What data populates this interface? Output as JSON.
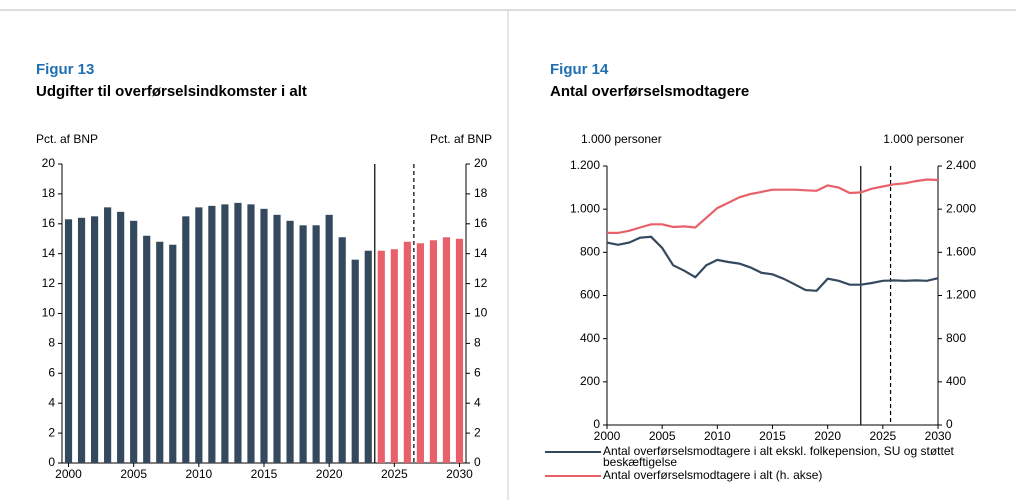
{
  "chart_data": [
    {
      "type": "bar",
      "label": "Figur 13",
      "title": "Udgifter til overførselsindkomster i alt",
      "ylabel": "Pct. af BNP",
      "y2label": "Pct. af BNP",
      "x": [
        2000,
        2001,
        2002,
        2003,
        2004,
        2005,
        2006,
        2007,
        2008,
        2009,
        2010,
        2011,
        2012,
        2013,
        2014,
        2015,
        2016,
        2017,
        2018,
        2019,
        2020,
        2021,
        2022,
        2023,
        2024,
        2025,
        2026,
        2027,
        2028,
        2029,
        2030
      ],
      "values": [
        16.3,
        16.4,
        16.5,
        17.1,
        16.8,
        16.2,
        15.2,
        14.8,
        14.6,
        16.5,
        17.1,
        17.2,
        17.3,
        17.4,
        17.3,
        17.0,
        16.6,
        16.2,
        15.9,
        15.9,
        16.6,
        15.1,
        13.6,
        14.2,
        14.2,
        14.3,
        14.8,
        14.7,
        14.9,
        15.1,
        15.0
      ],
      "colors": [
        "#34495e",
        "#34495e",
        "#34495e",
        "#34495e",
        "#34495e",
        "#34495e",
        "#34495e",
        "#34495e",
        "#34495e",
        "#34495e",
        "#34495e",
        "#34495e",
        "#34495e",
        "#34495e",
        "#34495e",
        "#34495e",
        "#34495e",
        "#34495e",
        "#34495e",
        "#34495e",
        "#34495e",
        "#34495e",
        "#34495e",
        "#34495e",
        "#e8616a",
        "#e8616a",
        "#e8616a",
        "#e8616a",
        "#e8616a",
        "#e8616a",
        "#e8616a"
      ],
      "xlim": [
        1999.5,
        2030.5
      ],
      "xticks": [
        2000,
        2005,
        2010,
        2015,
        2020,
        2025,
        2030
      ],
      "ylim": [
        0,
        20
      ],
      "yticks": [
        0,
        2,
        4,
        6,
        8,
        10,
        12,
        14,
        16,
        18,
        20
      ],
      "y2lim": [
        0,
        20
      ],
      "y2ticks": [
        0,
        2,
        4,
        6,
        8,
        10,
        12,
        14,
        16,
        18,
        20
      ],
      "vlines": [
        {
          "x": 2023.5,
          "style": "solid"
        },
        {
          "x": 2026.5,
          "style": "dashed"
        }
      ]
    },
    {
      "type": "line",
      "label": "Figur 14",
      "title": "Antal overførselsmodtagere",
      "ylabel": "1.000 personer",
      "y2label": "1.000 personer",
      "x": [
        2000,
        2001,
        2002,
        2003,
        2004,
        2005,
        2006,
        2007,
        2008,
        2009,
        2010,
        2011,
        2012,
        2013,
        2014,
        2015,
        2016,
        2017,
        2018,
        2019,
        2020,
        2021,
        2022,
        2023,
        2024,
        2025,
        2026,
        2027,
        2028,
        2029,
        2030
      ],
      "series": [
        {
          "name": "Antal overførselsmodtagere i alt ekskl. folkepension, SU og støttet beskæftigelse",
          "color": "#34495e",
          "values": [
            845,
            835,
            845,
            868,
            872,
            820,
            740,
            715,
            685,
            740,
            765,
            755,
            748,
            730,
            705,
            698,
            678,
            652,
            625,
            622,
            678,
            668,
            650,
            650,
            658,
            668,
            670,
            668,
            670,
            668,
            680
          ]
        },
        {
          "name": "Antal overførselsmodtagere i alt (h. akse)",
          "color": "#e8616a",
          "axis": "y2",
          "values": [
            1780,
            1780,
            1800,
            1830,
            1860,
            1860,
            1835,
            1840,
            1830,
            1920,
            2010,
            2060,
            2110,
            2140,
            2160,
            2180,
            2180,
            2180,
            2175,
            2170,
            2220,
            2200,
            2150,
            2155,
            2190,
            2210,
            2230,
            2240,
            2260,
            2275,
            2270
          ]
        }
      ],
      "xlim": [
        2000,
        2030
      ],
      "xticks": [
        2000,
        2005,
        2010,
        2015,
        2020,
        2025,
        2030
      ],
      "ylim": [
        0,
        1200
      ],
      "yticks": [
        0,
        200,
        400,
        600,
        800,
        {
          "value": 1000,
          "label": "1.000"
        },
        {
          "value": 1200,
          "label": "1.200"
        }
      ],
      "y2lim": [
        0,
        2400
      ],
      "y2ticks": [
        0,
        400,
        800,
        {
          "value": 1200,
          "label": "1.200"
        },
        {
          "value": 1600,
          "label": "1.600"
        },
        {
          "value": 2000,
          "label": "2.000"
        },
        {
          "value": 2400,
          "label": "2.400"
        }
      ],
      "vlines": [
        {
          "x": 2023,
          "style": "solid"
        },
        {
          "x": 2025.7,
          "style": "dashed"
        }
      ]
    }
  ]
}
